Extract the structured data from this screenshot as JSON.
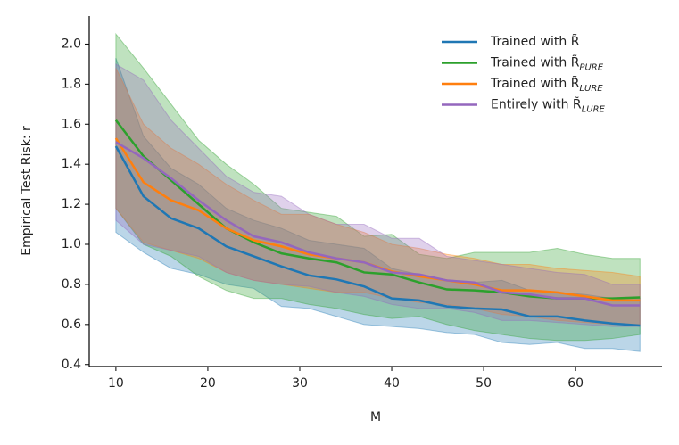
{
  "chart_data": {
    "type": "line",
    "xlabel": "M",
    "ylabel": "Empirical Test Risk: r",
    "x": [
      10,
      13,
      16,
      19,
      22,
      25,
      28,
      31,
      34,
      37,
      40,
      43,
      46,
      49,
      52,
      55,
      58,
      61,
      64,
      67
    ],
    "xlim": [
      7.1,
      69.4
    ],
    "ylim": [
      0.39,
      2.14
    ],
    "xticks": [
      10,
      20,
      30,
      40,
      50,
      60
    ],
    "yticks": [
      0.4,
      0.6,
      0.8,
      {
        "value": 1,
        "label": "1.0"
      },
      1.2,
      1.4,
      1.6,
      1.8,
      {
        "value": 2,
        "label": "2.0"
      }
    ],
    "legend": "upper right",
    "series": [
      {
        "name": "Trained with R̃",
        "color": "#1f77b4",
        "values": [
          1.49,
          1.24,
          1.13,
          1.08,
          0.99,
          0.94,
          0.89,
          0.845,
          0.825,
          0.79,
          0.73,
          0.72,
          0.69,
          0.68,
          0.675,
          0.64,
          0.64,
          0.62,
          0.605,
          0.595
        ],
        "upper": [
          1.93,
          1.54,
          1.38,
          1.3,
          1.18,
          1.12,
          1.08,
          1.02,
          1.0,
          0.98,
          0.88,
          0.85,
          0.82,
          0.81,
          0.82,
          0.77,
          0.76,
          0.75,
          0.73,
          0.73
        ],
        "lower": [
          1.06,
          0.96,
          0.88,
          0.85,
          0.8,
          0.78,
          0.69,
          0.68,
          0.64,
          0.6,
          0.59,
          0.58,
          0.56,
          0.55,
          0.51,
          0.5,
          0.51,
          0.48,
          0.48,
          0.465
        ]
      },
      {
        "name": "Trained with R̃",
        "subscript": "PURE",
        "color": "#2ca02c",
        "values": [
          1.62,
          1.44,
          1.32,
          1.2,
          1.08,
          1.01,
          0.955,
          0.93,
          0.91,
          0.86,
          0.85,
          0.81,
          0.775,
          0.77,
          0.76,
          0.74,
          0.73,
          0.73,
          0.73,
          0.735
        ],
        "upper": [
          2.05,
          1.88,
          1.7,
          1.52,
          1.4,
          1.3,
          1.18,
          1.16,
          1.14,
          1.04,
          1.05,
          0.95,
          0.93,
          0.96,
          0.96,
          0.96,
          0.98,
          0.95,
          0.93,
          0.93
        ],
        "lower": [
          1.18,
          1.0,
          0.94,
          0.84,
          0.77,
          0.73,
          0.73,
          0.7,
          0.68,
          0.65,
          0.63,
          0.64,
          0.6,
          0.57,
          0.55,
          0.53,
          0.52,
          0.52,
          0.53,
          0.55
        ]
      },
      {
        "name": "Trained with R̃",
        "subscript": "LURE",
        "color": "#ff7f0e",
        "values": [
          1.53,
          1.31,
          1.22,
          1.17,
          1.08,
          1.02,
          0.99,
          0.95,
          0.93,
          0.91,
          0.865,
          0.84,
          0.82,
          0.8,
          0.77,
          0.77,
          0.76,
          0.74,
          0.72,
          0.72
        ],
        "upper": [
          1.88,
          1.6,
          1.48,
          1.4,
          1.3,
          1.22,
          1.15,
          1.15,
          1.1,
          1.06,
          1.0,
          0.98,
          0.95,
          0.93,
          0.9,
          0.9,
          0.88,
          0.87,
          0.86,
          0.84
        ],
        "lower": [
          1.18,
          1.01,
          0.97,
          0.93,
          0.86,
          0.82,
          0.8,
          0.78,
          0.76,
          0.76,
          0.73,
          0.71,
          0.7,
          0.68,
          0.65,
          0.64,
          0.62,
          0.61,
          0.6,
          0.6
        ]
      },
      {
        "name": "Entirely with R̃",
        "subscript": "LURE",
        "color": "#9467bd",
        "values": [
          1.51,
          1.43,
          1.33,
          1.22,
          1.12,
          1.04,
          1.01,
          0.96,
          0.93,
          0.91,
          0.86,
          0.85,
          0.82,
          0.81,
          0.76,
          0.75,
          0.73,
          0.73,
          0.695,
          0.695
        ],
        "upper": [
          1.9,
          1.82,
          1.62,
          1.48,
          1.34,
          1.26,
          1.24,
          1.15,
          1.1,
          1.1,
          1.03,
          1.03,
          0.94,
          0.92,
          0.9,
          0.88,
          0.86,
          0.85,
          0.8,
          0.8
        ],
        "lower": [
          1.12,
          1.0,
          0.97,
          0.94,
          0.86,
          0.82,
          0.8,
          0.79,
          0.76,
          0.74,
          0.7,
          0.68,
          0.68,
          0.66,
          0.62,
          0.62,
          0.61,
          0.6,
          0.59,
          0.59
        ]
      }
    ]
  }
}
